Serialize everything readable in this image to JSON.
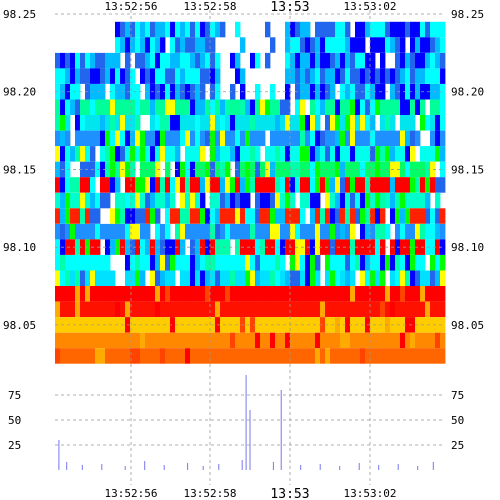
{
  "chart_data": {
    "type": "heatmap",
    "title": "",
    "x_ticks": [
      "13:52:56",
      "13:52:58",
      "13:53",
      "13:53:02"
    ],
    "x_tick_emphasis": [
      false,
      false,
      true,
      false
    ],
    "price_axis": {
      "ylim": [
        98.03,
        98.25
      ],
      "ticks": [
        "98.25",
        "98.20",
        "98.15",
        "98.10",
        "98.05"
      ]
    },
    "volume_axis": {
      "ylim": [
        0,
        100
      ],
      "ticks": [
        "75",
        "50",
        "25"
      ]
    },
    "grid": true,
    "colorscale": [
      "#0000ff",
      "#2266ee",
      "#00bbff",
      "#00ffff",
      "#00ffaa",
      "#00ff00",
      "#ffff00",
      "#ffaa00",
      "#ff4400",
      "#ff0000"
    ],
    "price_levels": [
      {
        "price": 98.24,
        "color": "#1e73ff"
      },
      {
        "price": 98.23,
        "color": "#1e90ff"
      },
      {
        "price": 98.22,
        "color": "#00bfff"
      },
      {
        "price": 98.21,
        "color": "#1e90ff"
      },
      {
        "price": 98.2,
        "color": "#00ced1"
      },
      {
        "price": 98.19,
        "color": "#00ff99"
      },
      {
        "price": 98.18,
        "color": "#00e5ee"
      },
      {
        "price": 98.17,
        "color": "#1e90ff"
      },
      {
        "price": 98.16,
        "color": "#00ffee"
      },
      {
        "price": 98.15,
        "color": "#00ff66"
      },
      {
        "price": 98.14,
        "color": "#ff0000"
      },
      {
        "price": 98.13,
        "color": "#00ffcc"
      },
      {
        "price": 98.12,
        "color": "#ff2200"
      },
      {
        "price": 98.11,
        "color": "#1e90ff"
      },
      {
        "price": 98.1,
        "color": "#ff0000"
      },
      {
        "price": 98.09,
        "color": "#00ffff"
      },
      {
        "price": 98.08,
        "color": "#00e0ff"
      },
      {
        "price": 98.07,
        "color": "#ff0000"
      },
      {
        "price": 98.06,
        "color": "#ff1100"
      },
      {
        "price": 98.05,
        "color": "#ffcc00"
      },
      {
        "price": 98.04,
        "color": "#ff8800"
      },
      {
        "price": 98.03,
        "color": "#ff6600"
      }
    ],
    "volume_spikes": [
      {
        "t": 0.01,
        "v": 30
      },
      {
        "t": 0.03,
        "v": 8
      },
      {
        "t": 0.07,
        "v": 5
      },
      {
        "t": 0.12,
        "v": 6
      },
      {
        "t": 0.18,
        "v": 4
      },
      {
        "t": 0.23,
        "v": 9
      },
      {
        "t": 0.28,
        "v": 5
      },
      {
        "t": 0.34,
        "v": 7
      },
      {
        "t": 0.38,
        "v": 4
      },
      {
        "t": 0.42,
        "v": 6
      },
      {
        "t": 0.48,
        "v": 10
      },
      {
        "t": 0.49,
        "v": 95
      },
      {
        "t": 0.5,
        "v": 60
      },
      {
        "t": 0.56,
        "v": 8
      },
      {
        "t": 0.58,
        "v": 80
      },
      {
        "t": 0.63,
        "v": 5
      },
      {
        "t": 0.68,
        "v": 6
      },
      {
        "t": 0.73,
        "v": 4
      },
      {
        "t": 0.78,
        "v": 7
      },
      {
        "t": 0.83,
        "v": 5
      },
      {
        "t": 0.88,
        "v": 6
      },
      {
        "t": 0.93,
        "v": 4
      },
      {
        "t": 0.97,
        "v": 8
      }
    ]
  }
}
